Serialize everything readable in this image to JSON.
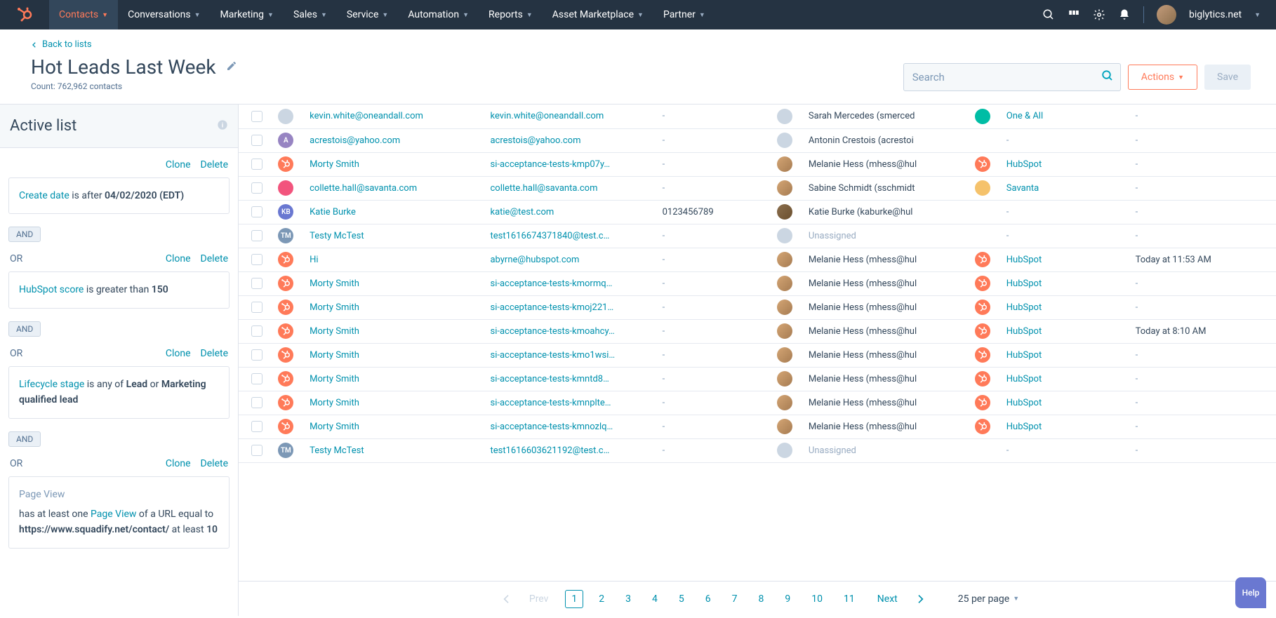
{
  "nav": {
    "items": [
      {
        "label": "Contacts",
        "active": true
      },
      {
        "label": "Conversations",
        "active": false
      },
      {
        "label": "Marketing",
        "active": false
      },
      {
        "label": "Sales",
        "active": false
      },
      {
        "label": "Service",
        "active": false
      },
      {
        "label": "Automation",
        "active": false
      },
      {
        "label": "Reports",
        "active": false
      },
      {
        "label": "Asset Marketplace",
        "active": false
      },
      {
        "label": "Partner",
        "active": false
      }
    ],
    "account": "biglytics.net"
  },
  "header": {
    "back_label": "Back to lists",
    "title": "Hot Leads Last Week",
    "count_label": "Count: 762,962 contacts",
    "search_placeholder": "Search",
    "actions_label": "Actions",
    "save_label": "Save"
  },
  "sidebar": {
    "title": "Active list",
    "clone_label": "Clone",
    "delete_label": "Delete",
    "and_label": "AND",
    "or_label": "OR",
    "filters": [
      {
        "field": "Create date",
        "op": " is after ",
        "value": "04/02/2020 (EDT)"
      },
      {
        "field": "HubSpot score",
        "op": " is greater than ",
        "value": "150"
      },
      {
        "field": "Lifecycle stage",
        "op": " is any of ",
        "value": "Lead",
        "extra_op": " or ",
        "extra_value": "Marketing qualified lead"
      }
    ],
    "pageview": {
      "title": "Page View",
      "prefix": "has at least one ",
      "link": "Page View",
      "mid": " of a URL equal to ",
      "url": "https://www.squadify.net/contact/",
      "suffix": "  at least ",
      "count": "10"
    }
  },
  "table": {
    "rows": [
      {
        "avatar_class": "av-gray",
        "avatar_text": "",
        "name": "kevin.white@oneandall.com",
        "email": "kevin.white@oneandall.com",
        "phone": "-",
        "owner_av": "av-gray",
        "owner": "Sarah Mercedes (smerced",
        "company_av": "av-oa",
        "company": "One & All",
        "date": "-"
      },
      {
        "avatar_class": "av-purple",
        "avatar_text": "A",
        "name": "acrestois@yahoo.com",
        "email": "acrestois@yahoo.com",
        "phone": "-",
        "owner_av": "av-gray",
        "owner": "Antonin Crestois (acrestoi",
        "company_av": "",
        "company": "-",
        "date": "-"
      },
      {
        "avatar_class": "av-hs",
        "avatar_text": "",
        "name": "Morty Smith",
        "email": "si-acceptance-tests-kmp07y…",
        "phone": "-",
        "owner_av": "av-img",
        "owner": "Melanie Hess (mhess@hul",
        "company_av": "av-hs",
        "company": "HubSpot",
        "date": "-"
      },
      {
        "avatar_class": "av-pink",
        "avatar_text": "",
        "name": "collette.hall@savanta.com",
        "email": "collette.hall@savanta.com",
        "phone": "-",
        "owner_av": "av-img",
        "owner": "Sabine Schmidt (sschmidt",
        "company_av": "av-sv",
        "company": "Savanta",
        "date": "-"
      },
      {
        "avatar_class": "av-blue",
        "avatar_text": "KB",
        "name": "Katie Burke",
        "email": "katie@test.com",
        "phone": "0123456789",
        "owner_av": "av-img2",
        "owner": "Katie Burke (kaburke@hul",
        "company_av": "",
        "company": "-",
        "date": "-"
      },
      {
        "avatar_class": "av-tm",
        "avatar_text": "TM",
        "name": "Testy McTest",
        "email": "test1616674371840@test.c…",
        "phone": "-",
        "owner_av": "av-gray",
        "owner": "Unassigned",
        "owner_muted": true,
        "company_av": "",
        "company": "-",
        "date": "-"
      },
      {
        "avatar_class": "av-hs",
        "avatar_text": "",
        "name": "Hi",
        "email": "abyrne@hubspot.com",
        "phone": "-",
        "owner_av": "av-img",
        "owner": "Melanie Hess (mhess@hul",
        "company_av": "av-hs",
        "company": "HubSpot",
        "date": "Today at 11:53 AM"
      },
      {
        "avatar_class": "av-hs",
        "avatar_text": "",
        "name": "Morty Smith",
        "email": "si-acceptance-tests-kmormq…",
        "phone": "-",
        "owner_av": "av-img",
        "owner": "Melanie Hess (mhess@hul",
        "company_av": "av-hs",
        "company": "HubSpot",
        "date": "-"
      },
      {
        "avatar_class": "av-hs",
        "avatar_text": "",
        "name": "Morty Smith",
        "email": "si-acceptance-tests-kmoj221…",
        "phone": "-",
        "owner_av": "av-img",
        "owner": "Melanie Hess (mhess@hul",
        "company_av": "av-hs",
        "company": "HubSpot",
        "date": "-"
      },
      {
        "avatar_class": "av-hs",
        "avatar_text": "",
        "name": "Morty Smith",
        "email": "si-acceptance-tests-kmoahcy…",
        "phone": "-",
        "owner_av": "av-img",
        "owner": "Melanie Hess (mhess@hul",
        "company_av": "av-hs",
        "company": "HubSpot",
        "date": "Today at 8:10 AM"
      },
      {
        "avatar_class": "av-hs",
        "avatar_text": "",
        "name": "Morty Smith",
        "email": "si-acceptance-tests-kmo1wsi…",
        "phone": "-",
        "owner_av": "av-img",
        "owner": "Melanie Hess (mhess@hul",
        "company_av": "av-hs",
        "company": "HubSpot",
        "date": "-"
      },
      {
        "avatar_class": "av-hs",
        "avatar_text": "",
        "name": "Morty Smith",
        "email": "si-acceptance-tests-kmntd8…",
        "phone": "-",
        "owner_av": "av-img",
        "owner": "Melanie Hess (mhess@hul",
        "company_av": "av-hs",
        "company": "HubSpot",
        "date": "-"
      },
      {
        "avatar_class": "av-hs",
        "avatar_text": "",
        "name": "Morty Smith",
        "email": "si-acceptance-tests-kmnplte…",
        "phone": "-",
        "owner_av": "av-img",
        "owner": "Melanie Hess (mhess@hul",
        "company_av": "av-hs",
        "company": "HubSpot",
        "date": "-"
      },
      {
        "avatar_class": "av-hs",
        "avatar_text": "",
        "name": "Morty Smith",
        "email": "si-acceptance-tests-kmnozlq…",
        "phone": "-",
        "owner_av": "av-img",
        "owner": "Melanie Hess (mhess@hul",
        "company_av": "av-hs",
        "company": "HubSpot",
        "date": "-"
      },
      {
        "avatar_class": "av-tm",
        "avatar_text": "TM",
        "name": "Testy McTest",
        "email": "test1616603621192@test.c…",
        "phone": "-",
        "owner_av": "av-gray",
        "owner": "Unassigned",
        "owner_muted": true,
        "company_av": "",
        "company": "-",
        "date": "-"
      }
    ]
  },
  "pager": {
    "prev": "Prev",
    "pages": [
      "1",
      "2",
      "3",
      "4",
      "5",
      "6",
      "7",
      "8",
      "9",
      "10",
      "11"
    ],
    "current": "1",
    "next": "Next",
    "per_page": "25 per page"
  },
  "help": "Help"
}
